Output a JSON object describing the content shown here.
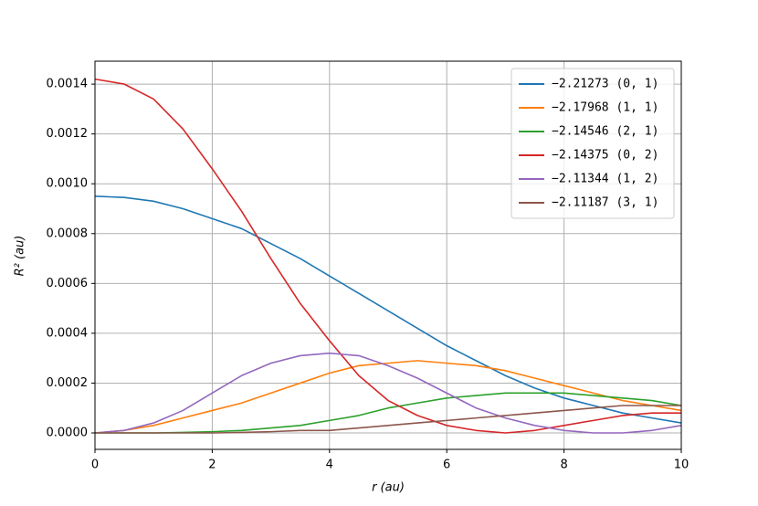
{
  "chart_data": {
    "type": "line",
    "xlabel": "r (au)",
    "ylabel": "R² (au)",
    "x": [
      0,
      0.5,
      1,
      1.5,
      2,
      2.5,
      3,
      3.5,
      4,
      4.5,
      5,
      5.5,
      6,
      6.5,
      7,
      7.5,
      8,
      8.5,
      9,
      9.5,
      10
    ],
    "series": [
      {
        "name": "−2.21273 (0, 1)",
        "color": "#1f77b4",
        "values": [
          0.00095,
          0.000945,
          0.00093,
          0.0009,
          0.00086,
          0.00082,
          0.00076,
          0.0007,
          0.00063,
          0.00056,
          0.00049,
          0.00042,
          0.00035,
          0.00029,
          0.00023,
          0.00018,
          0.00014,
          0.00011,
          8e-05,
          6e-05,
          4e-05
        ]
      },
      {
        "name": "−2.17968 (1, 1)",
        "color": "#ff7f0e",
        "values": [
          0,
          1e-05,
          3e-05,
          6e-05,
          9e-05,
          0.00012,
          0.00016,
          0.0002,
          0.00024,
          0.00027,
          0.00028,
          0.00029,
          0.00028,
          0.00027,
          0.00025,
          0.00022,
          0.00019,
          0.00016,
          0.00013,
          0.00011,
          9e-05
        ]
      },
      {
        "name": "−2.14546 (2, 1)",
        "color": "#2ca02c",
        "values": [
          0,
          0,
          0,
          2e-06,
          5e-06,
          1e-05,
          2e-05,
          3e-05,
          5e-05,
          7e-05,
          0.0001,
          0.00012,
          0.00014,
          0.00015,
          0.00016,
          0.00016,
          0.00016,
          0.00015,
          0.00014,
          0.00013,
          0.00011
        ]
      },
      {
        "name": "−2.14375 (0, 2)",
        "color": "#d62728",
        "values": [
          0.00142,
          0.0014,
          0.00134,
          0.00122,
          0.00106,
          0.00089,
          0.0007,
          0.00052,
          0.00037,
          0.00023,
          0.00013,
          7e-05,
          3e-05,
          1e-05,
          0,
          1e-05,
          3e-05,
          5e-05,
          7e-05,
          8e-05,
          8e-05
        ]
      },
      {
        "name": "−2.11344 (1, 2)",
        "color": "#9467bd",
        "values": [
          0,
          1e-05,
          4e-05,
          9e-05,
          0.00016,
          0.00023,
          0.00028,
          0.00031,
          0.00032,
          0.00031,
          0.00027,
          0.00022,
          0.00016,
          0.0001,
          6e-05,
          3e-05,
          1e-05,
          0,
          0,
          1e-05,
          3e-05
        ]
      },
      {
        "name": "−2.11187 (3, 1)",
        "color": "#8c564b",
        "values": [
          0,
          0,
          0,
          0,
          0,
          2e-06,
          5e-06,
          1e-05,
          1e-05,
          2e-05,
          3e-05,
          4e-05,
          5e-05,
          6e-05,
          7e-05,
          8e-05,
          9e-05,
          0.0001,
          0.00011,
          0.00011,
          0.00011
        ]
      }
    ],
    "xlim": [
      0,
      10
    ],
    "xticks": [
      0,
      2,
      4,
      6,
      8,
      10
    ],
    "ylim": [
      -6.6e-05,
      0.001492
    ],
    "yticks": [
      {
        "value": 0,
        "label": "0.0000"
      },
      {
        "value": 0.0002,
        "label": "0.0002"
      },
      {
        "value": 0.0004,
        "label": "0.0004"
      },
      {
        "value": 0.0006,
        "label": "0.0006"
      },
      {
        "value": 0.0008,
        "label": "0.0008"
      },
      {
        "value": 0.001,
        "label": "0.0010"
      },
      {
        "value": 0.0012,
        "label": "0.0012"
      },
      {
        "value": 0.0014,
        "label": "0.0014"
      }
    ],
    "grid": true,
    "legend": "upper-right"
  }
}
